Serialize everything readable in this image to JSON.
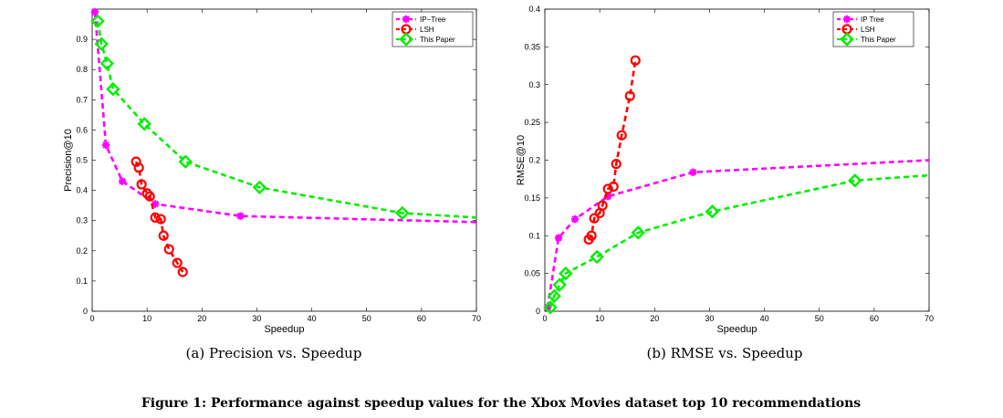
{
  "figure_caption": "Figure 1: Performance against speedup values for the Xbox Movies dataset top 10 recommendations",
  "chart_data": [
    {
      "type": "line",
      "subcaption": "(a) Precision vs. Speedup",
      "xlabel": "Speedup",
      "ylabel": "Precision@10",
      "xlim": [
        0,
        70
      ],
      "ylim": [
        0,
        1
      ],
      "xticks": [
        0,
        10,
        20,
        30,
        40,
        50,
        60,
        70
      ],
      "yticks": [
        0,
        0.1,
        0.2,
        0.3,
        0.4,
        0.5,
        0.6,
        0.7,
        0.8,
        0.9
      ],
      "ytick_labels": [
        "0",
        "0.1",
        "0.2",
        "0.3",
        "0.4",
        "0.5",
        "0.6",
        "0.7",
        "0.8",
        "0.9"
      ],
      "legend_position": "top-right",
      "series": [
        {
          "name": "IP−Tree",
          "color": "#ff00ff",
          "marker": "star",
          "x": [
            0.5,
            2.5,
            5.5,
            11.5,
            27,
            70
          ],
          "y": [
            0.99,
            0.55,
            0.43,
            0.355,
            0.315,
            0.295
          ]
        },
        {
          "name": "LSH",
          "color": "#ff0000",
          "marker": "circle",
          "x": [
            8,
            8.5,
            9,
            10,
            10.5,
            11.5,
            12.5,
            13,
            14,
            15.5,
            16.5
          ],
          "y": [
            0.495,
            0.475,
            0.42,
            0.39,
            0.38,
            0.31,
            0.305,
            0.25,
            0.205,
            0.16,
            0.13
          ]
        },
        {
          "name": "This Paper",
          "color": "#00ee00",
          "marker": "diamond",
          "x": [
            1,
            1.7,
            2.7,
            3.8,
            9.5,
            17,
            30.5,
            56.5,
            70
          ],
          "y": [
            0.96,
            0.885,
            0.82,
            0.735,
            0.62,
            0.495,
            0.41,
            0.325,
            0.31
          ]
        }
      ]
    },
    {
      "type": "line",
      "subcaption": "(b) RMSE vs. Speedup",
      "xlabel": "Speedup",
      "ylabel": "RMSE@10",
      "xlim": [
        0,
        70
      ],
      "ylim": [
        0,
        0.4
      ],
      "xticks": [
        0,
        10,
        20,
        30,
        40,
        50,
        60,
        70
      ],
      "yticks": [
        0,
        0.05,
        0.1,
        0.15,
        0.2,
        0.25,
        0.3,
        0.35,
        0.4
      ],
      "ytick_labels": [
        "0",
        "0.05",
        "0.1",
        "0.15",
        "0.2",
        "0.25",
        "0.3",
        "0.35",
        "0.4"
      ],
      "legend_position": "top-right",
      "series": [
        {
          "name": "IP Tree",
          "color": "#ff00ff",
          "marker": "star",
          "x": [
            0.5,
            2.5,
            5.5,
            11.5,
            27,
            70
          ],
          "y": [
            0.005,
            0.097,
            0.122,
            0.152,
            0.184,
            0.2
          ]
        },
        {
          "name": "LSH",
          "color": "#ff0000",
          "marker": "circle",
          "x": [
            8,
            8.5,
            9,
            10,
            10.5,
            11.5,
            12.5,
            13,
            14,
            15.5,
            16.5
          ],
          "y": [
            0.095,
            0.1,
            0.123,
            0.13,
            0.14,
            0.162,
            0.165,
            0.195,
            0.233,
            0.285,
            0.332
          ]
        },
        {
          "name": "This Paper",
          "color": "#00ee00",
          "marker": "diamond",
          "x": [
            1,
            1.7,
            2.7,
            3.8,
            9.5,
            17,
            30.5,
            56.5,
            70
          ],
          "y": [
            0.005,
            0.02,
            0.035,
            0.05,
            0.072,
            0.104,
            0.132,
            0.173,
            0.18
          ]
        }
      ]
    }
  ]
}
